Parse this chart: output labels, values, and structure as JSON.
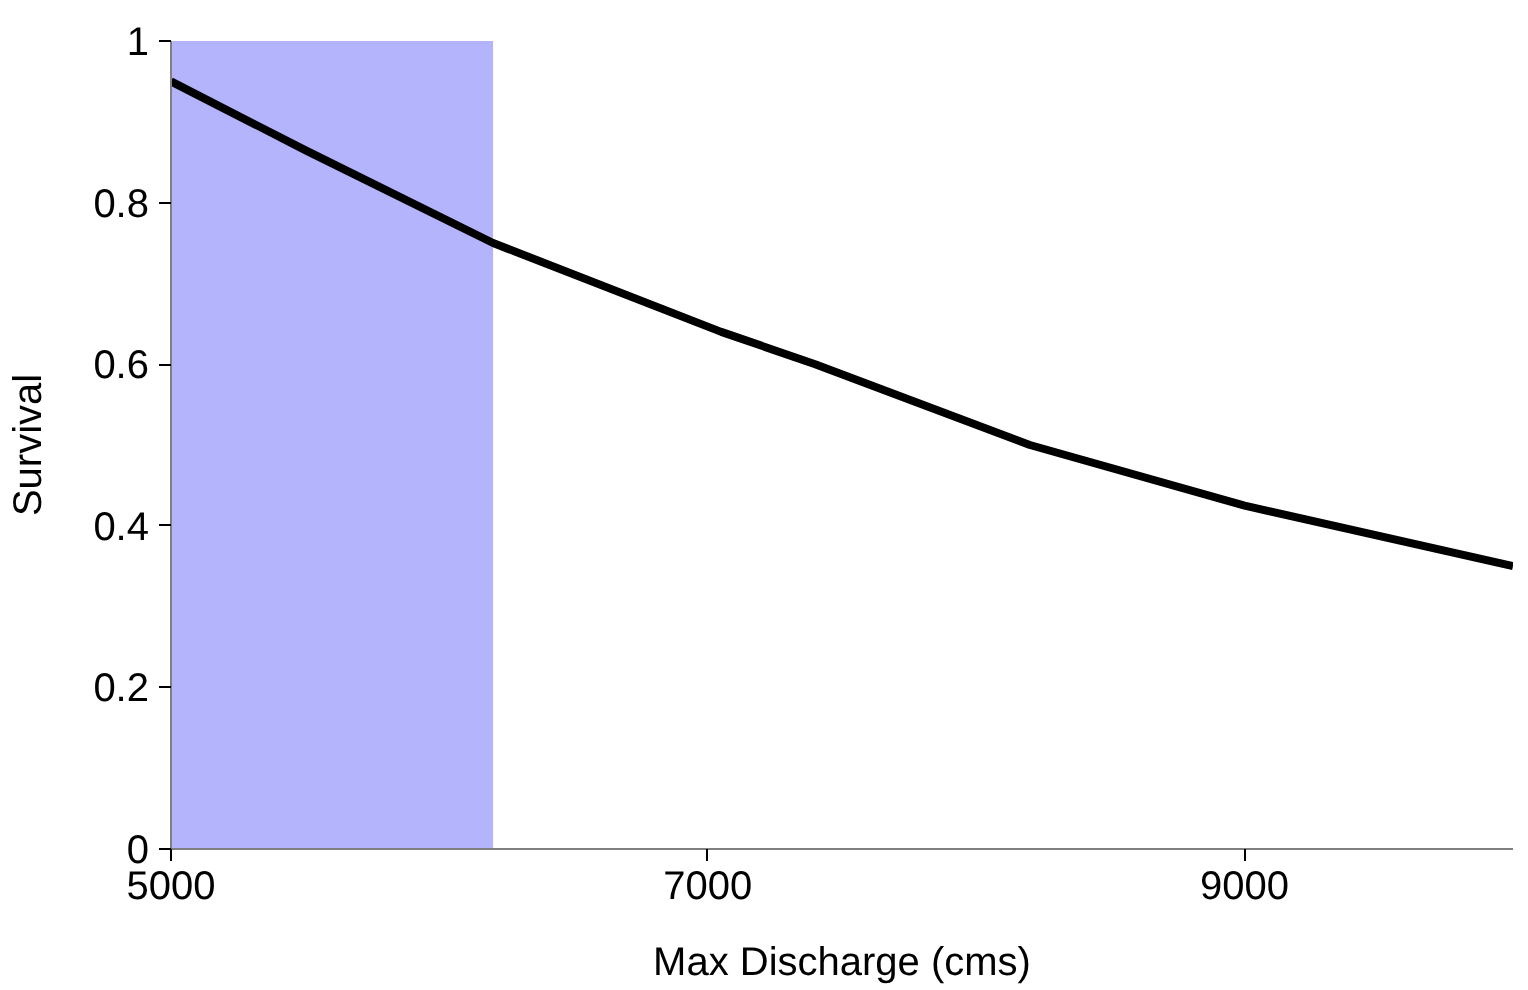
{
  "chart_data": {
    "type": "line",
    "xlabel": "Max Discharge (cms)",
    "ylabel": "Survival",
    "x": [
      5000,
      5500,
      6200,
      7050,
      7400,
      8200,
      9000,
      10000
    ],
    "series": [
      {
        "color": "#000000",
        "values": [
          0.95,
          0.865,
          0.75,
          0.64,
          0.6,
          0.5,
          0.425,
          0.35
        ]
      }
    ],
    "xlim": [
      5000,
      10000
    ],
    "ylim": [
      0,
      1
    ],
    "xticks": [
      5000,
      7000,
      9000
    ],
    "yticks": [
      0,
      0.2,
      0.4,
      0.6,
      0.8,
      1
    ],
    "bands": [
      {
        "axis": "x",
        "from": 5000,
        "to": 6200,
        "color": "#b4b4fc"
      }
    ],
    "line_style": "solid"
  }
}
